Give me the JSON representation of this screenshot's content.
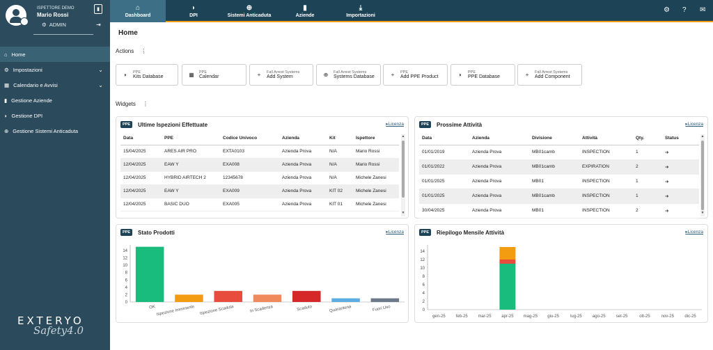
{
  "user": {
    "role": "ISPETTORE DEMO",
    "name": "Mario Rossi",
    "level": "ADMIN"
  },
  "sidebar": {
    "items": [
      {
        "label": "Home",
        "icon": "home-icon"
      },
      {
        "label": "Impostazioni",
        "icon": "gears-icon"
      },
      {
        "label": "Calendario e Avvisi",
        "icon": "calendar-icon"
      },
      {
        "label": "Gestione Aziende",
        "icon": "building-icon"
      },
      {
        "label": "Gestione DPI",
        "icon": "shield-icon"
      },
      {
        "label": "Gestione Sistemi Anticaduta",
        "icon": "lifebuoy-icon"
      }
    ],
    "brand": "EXTERYO",
    "brand_sub": "Safety4.0"
  },
  "topnav": {
    "tabs": [
      {
        "label": "Dashboard",
        "icon": "home-icon"
      },
      {
        "label": "DPI",
        "icon": "shield-icon"
      },
      {
        "label": "Sistemi Anticaduta",
        "icon": "lifebuoy-icon"
      },
      {
        "label": "Aziende",
        "icon": "building-icon"
      },
      {
        "label": "Importazioni",
        "icon": "download-icon"
      }
    ]
  },
  "page": {
    "title": "Home",
    "actions_label": "Actions",
    "widgets_label": "Widgets"
  },
  "actions": [
    {
      "small": "PPE",
      "label": "Kits Database",
      "icon": "shield-icon"
    },
    {
      "small": "PPE",
      "label": "Calendar",
      "icon": "calendar-icon"
    },
    {
      "small": "Fall Arrest Systems",
      "label": "Add System",
      "icon": "plus-icon"
    },
    {
      "small": "Fall Arrest Systems",
      "label": "Systems Database",
      "icon": "lifebuoy-icon"
    },
    {
      "small": "PPE",
      "label": "Add PPE Product",
      "icon": "plus-icon"
    },
    {
      "small": "PPE",
      "label": "PPE Database",
      "icon": "shield-icon"
    },
    {
      "small": "Fall Arrest Systems",
      "label": "Add Component",
      "icon": "plus-icon"
    }
  ],
  "widgets": {
    "badge": "PPE",
    "licenza": "Licenza",
    "inspections": {
      "title": "Ultime Ispezioni Effettuate",
      "headers": [
        "Data",
        "PPE",
        "Codice Univoco",
        "Azienda",
        "Kit",
        "Ispettore"
      ],
      "rows": [
        [
          "15/04/2025",
          "ARES AIR PRO",
          "EXTA0103",
          "Azienda Prova",
          "N/A",
          "Mario Rossi"
        ],
        [
          "12/04/2025",
          "EAW Y",
          "EXA008",
          "Azienda Prova",
          "N/A",
          "Mario Rossi"
        ],
        [
          "12/04/2025",
          "HYBRID AIRTECH 2",
          "12345678",
          "Azienda Prova",
          "N/A",
          "Michele Zanesi"
        ],
        [
          "12/04/2025",
          "EAW Y",
          "EXA009",
          "Azienda Prova",
          "KIT 02",
          "Michele Zanesi"
        ],
        [
          "12/04/2025",
          "BASIC DUO",
          "EXA005",
          "Azienda Prova",
          "KIT 01",
          "Michele Zanesi"
        ]
      ]
    },
    "activities": {
      "title": "Prossime Attività",
      "headers": [
        "Data",
        "Azienda",
        "Divisione",
        "Attività",
        "Qty.",
        "Status"
      ],
      "rows": [
        [
          "01/01/2019",
          "Azienda Prova",
          "MB01camb",
          "INSPECTION",
          "1",
          "➔"
        ],
        [
          "01/01/2022",
          "Azienda Prova",
          "MB01camb",
          "EXPIRATION",
          "2",
          "➔"
        ],
        [
          "01/01/2025",
          "Azienda Prova",
          "MB01",
          "INSPECTION",
          "1",
          "➔"
        ],
        [
          "01/01/2025",
          "Azienda Prova",
          "MB01camb",
          "INSPECTION",
          "1",
          "➔"
        ],
        [
          "30/04/2025",
          "Azienda Prova",
          "MB01",
          "INSPECTION",
          "2",
          "➔"
        ]
      ]
    },
    "stato": {
      "title": "Stato Prodotti"
    },
    "riepilogo": {
      "title": "Riepilogo Mensile Attività"
    }
  },
  "chart_data": [
    {
      "type": "bar",
      "categories": [
        "OK",
        "Ispezione Imminente",
        "Ispezione Scaduta",
        "In Scadenza",
        "Scaduto",
        "Quarantena",
        "Fuori Uso"
      ],
      "values": [
        15,
        2,
        3,
        2,
        3,
        1,
        1
      ],
      "colors": [
        "#1abc7e",
        "#f39c12",
        "#e74c3c",
        "#f08a5d",
        "#d62828",
        "#5dade2",
        "#6c7a89"
      ],
      "yticks": [
        0,
        2,
        4,
        6,
        8,
        10,
        12,
        14
      ],
      "ylim": [
        0,
        15.5
      ]
    },
    {
      "type": "bar",
      "stacked": true,
      "categories": [
        "gen-25",
        "feb-25",
        "mar-25",
        "apr-25",
        "mag-25",
        "giu-25",
        "lug-25",
        "ago-25",
        "set-25",
        "ott-25",
        "nov-25",
        "dic-25"
      ],
      "series": [
        {
          "values": [
            0,
            0,
            0,
            11,
            0,
            0,
            0,
            0,
            0,
            0,
            0,
            0
          ],
          "color": "#1abc7e"
        },
        {
          "values": [
            0,
            0,
            0,
            1,
            0,
            0,
            0,
            0,
            0,
            0,
            0,
            0
          ],
          "color": "#e74c3c"
        },
        {
          "values": [
            0,
            0,
            0,
            3,
            0,
            0,
            0,
            0,
            0,
            0,
            0,
            0
          ],
          "color": "#f39c12"
        }
      ],
      "yticks": [
        0,
        2,
        4,
        6,
        8,
        10,
        12,
        14
      ],
      "ylim": [
        0,
        15.5
      ]
    }
  ]
}
